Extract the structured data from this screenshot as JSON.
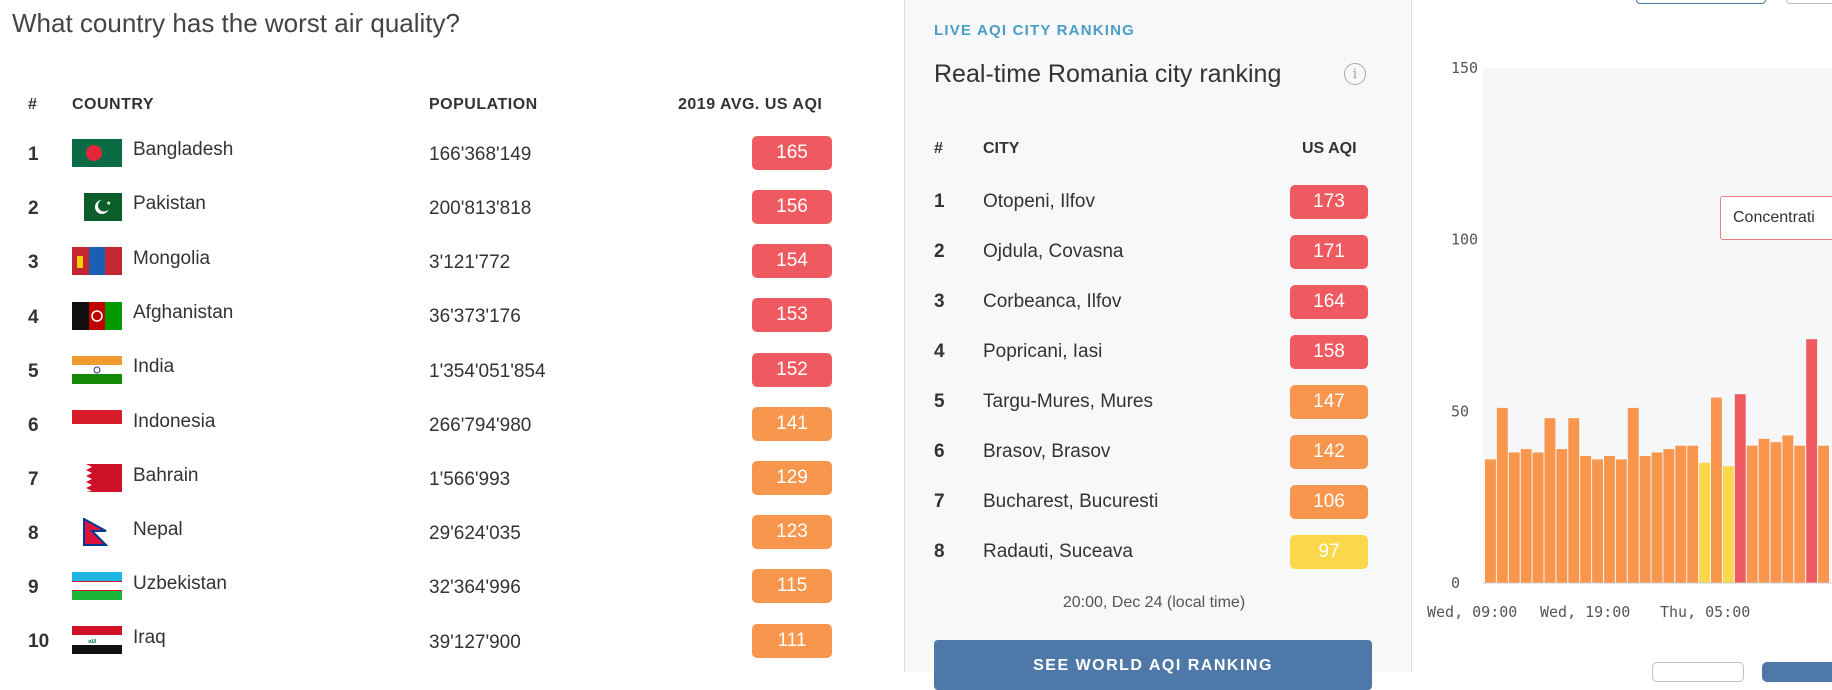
{
  "question": "What country has the worst air quality?",
  "country_table": {
    "headers": {
      "rank": "#",
      "country": "COUNTRY",
      "population": "POPULATION",
      "aqi": "2019 AVG. US AQI"
    },
    "rows": [
      {
        "rank": "1",
        "country": "Bangladesh",
        "population": "166'368'149",
        "aqi": "165",
        "level": "red",
        "flag_icon": "bangladesh-flag-icon"
      },
      {
        "rank": "2",
        "country": "Pakistan",
        "population": "200'813'818",
        "aqi": "156",
        "level": "red",
        "flag_icon": "pakistan-flag-icon"
      },
      {
        "rank": "3",
        "country": "Mongolia",
        "population": "3'121'772",
        "aqi": "154",
        "level": "red",
        "flag_icon": "mongolia-flag-icon"
      },
      {
        "rank": "4",
        "country": "Afghanistan",
        "population": "36'373'176",
        "aqi": "153",
        "level": "red",
        "flag_icon": "afghanistan-flag-icon"
      },
      {
        "rank": "5",
        "country": "India",
        "population": "1'354'051'854",
        "aqi": "152",
        "level": "red",
        "flag_icon": "india-flag-icon"
      },
      {
        "rank": "6",
        "country": "Indonesia",
        "population": "266'794'980",
        "aqi": "141",
        "level": "orange",
        "flag_icon": "indonesia-flag-icon"
      },
      {
        "rank": "7",
        "country": "Bahrain",
        "population": "1'566'993",
        "aqi": "129",
        "level": "orange",
        "flag_icon": "bahrain-flag-icon"
      },
      {
        "rank": "8",
        "country": "Nepal",
        "population": "29'624'035",
        "aqi": "123",
        "level": "orange",
        "flag_icon": "nepal-flag-icon"
      },
      {
        "rank": "9",
        "country": "Uzbekistan",
        "population": "32'364'996",
        "aqi": "115",
        "level": "orange",
        "flag_icon": "uzbekistan-flag-icon"
      },
      {
        "rank": "10",
        "country": "Iraq",
        "population": "39'127'900",
        "aqi": "111",
        "level": "orange",
        "flag_icon": "iraq-flag-icon"
      }
    ]
  },
  "live_panel": {
    "kicker": "LIVE AQI CITY RANKING",
    "title": "Real-time Romania city ranking",
    "info_icon": "info-icon",
    "headers": {
      "rank": "#",
      "city": "CITY",
      "aqi": "US AQI"
    },
    "rows": [
      {
        "rank": "1",
        "city": "Otopeni, Ilfov",
        "aqi": "173",
        "level": "red"
      },
      {
        "rank": "2",
        "city": "Ojdula, Covasna",
        "aqi": "171",
        "level": "red"
      },
      {
        "rank": "3",
        "city": "Corbeanca, Ilfov",
        "aqi": "164",
        "level": "red"
      },
      {
        "rank": "4",
        "city": "Popricani, Iasi",
        "aqi": "158",
        "level": "red"
      },
      {
        "rank": "5",
        "city": "Targu-Mures, Mures",
        "aqi": "147",
        "level": "orange"
      },
      {
        "rank": "6",
        "city": "Brasov, Brasov",
        "aqi": "142",
        "level": "orange"
      },
      {
        "rank": "7",
        "city": "Bucharest, Bucuresti",
        "aqi": "106",
        "level": "orange"
      },
      {
        "rank": "8",
        "city": "Radauti, Suceava",
        "aqi": "97",
        "level": "yellow"
      }
    ],
    "update_time": "20:00, Dec 24 (local time)",
    "world_button": "SEE WORLD AQI RANKING"
  },
  "colors": {
    "red": "#ef5a60",
    "orange": "#f7964c",
    "yellow": "#fbd84b",
    "accent": "#4e78a8",
    "kicker": "#4b9dc4"
  },
  "tooltip": "Concentrati",
  "chart_data": {
    "type": "bar",
    "title": "",
    "xlabel": "",
    "ylabel": "",
    "ylim": [
      0,
      150
    ],
    "yticks": [
      "0",
      "50",
      "100",
      "150"
    ],
    "x_tick_labels": [
      "Wed, 09:00",
      "Wed, 19:00",
      "Thu, 05:00"
    ],
    "grid": false,
    "values": [
      36,
      51,
      38,
      39,
      38,
      48,
      39,
      48,
      37,
      36,
      37,
      36,
      51,
      37,
      38,
      39,
      40,
      40,
      35,
      54,
      34,
      55,
      40,
      42,
      41,
      43,
      40,
      71,
      40
    ],
    "levels": [
      "orange",
      "orange",
      "orange",
      "orange",
      "orange",
      "orange",
      "orange",
      "orange",
      "orange",
      "orange",
      "orange",
      "orange",
      "orange",
      "orange",
      "orange",
      "orange",
      "orange",
      "orange",
      "yellow",
      "orange",
      "yellow",
      "red",
      "orange",
      "orange",
      "orange",
      "orange",
      "orange",
      "red",
      "orange"
    ]
  }
}
